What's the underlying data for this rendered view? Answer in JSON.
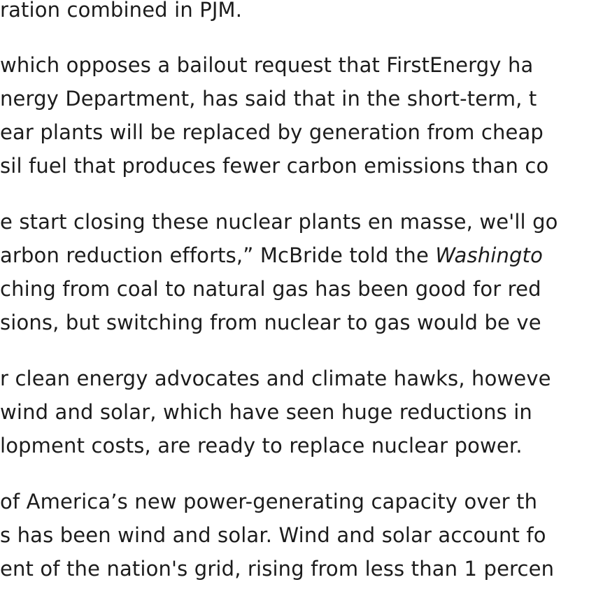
{
  "paragraphs": [
    {
      "lines": [
        "ration combined in PJM."
      ]
    },
    {
      "lines": [
        " which opposes a bailout request that FirstEnergy ha",
        "nergy Department, has said that in the short-term, t",
        "ear plants will be replaced by generation from cheap",
        "sil fuel that produces fewer carbon emissions than co"
      ]
    },
    {
      "lines": [
        "e start closing these nuclear plants en masse, we'll go",
        "arbon reduction efforts,” McBride told the ",
        "ching from coal to natural gas has been good for red",
        "sions, but switching from nuclear to gas would be ve"
      ],
      "italic": "Washingto"
    },
    {
      "lines": [
        "r clean energy advocates and climate hawks, howeve",
        "wind and solar, which have seen huge reductions in",
        "lopment costs, are ready to replace nuclear power."
      ]
    },
    {
      "lines": [
        " of America’s new power-generating capacity over th",
        "s has been wind and solar. Wind and solar account fo",
        "ent of the nation's grid, rising from less than 1 percen"
      ]
    }
  ]
}
